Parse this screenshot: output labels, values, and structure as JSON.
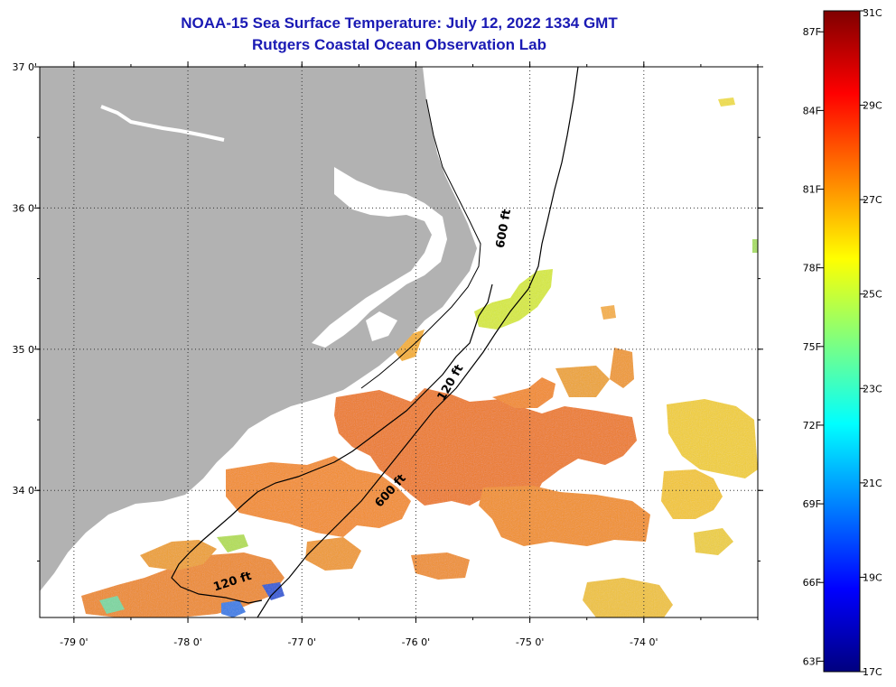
{
  "title": {
    "line1": "NOAA-15 Sea Surface Temperature:  July 12, 2022 1334 GMT",
    "line2": "Rutgers Coastal Ocean Observation Lab"
  },
  "map": {
    "lon_range": [
      -79.3,
      -73.0
    ],
    "lat_range": [
      33.1,
      37.0
    ],
    "lon_ticks": [
      {
        "lon": -79,
        "label": "-79 0'"
      },
      {
        "lon": -78,
        "label": "-78 0'"
      },
      {
        "lon": -77,
        "label": "-77 0'"
      },
      {
        "lon": -76,
        "label": "-76 0'"
      },
      {
        "lon": -75,
        "label": "-75 0'"
      },
      {
        "lon": -74,
        "label": "-74 0'"
      }
    ],
    "lat_ticks": [
      {
        "lat": 37,
        "label": "37 0'"
      },
      {
        "lat": 36,
        "label": "36 0'"
      },
      {
        "lat": 35,
        "label": "35 0'"
      },
      {
        "lat": 34,
        "label": "34 0'"
      }
    ],
    "grid": "dotted",
    "land_color": "#b2b2b2",
    "cloud_color": "#ffffff",
    "depth_labels": [
      {
        "text": "600 ft",
        "lon": -75.2,
        "lat": 35.85,
        "rotate": -80
      },
      {
        "text": "120 ft",
        "lon": -75.67,
        "lat": 34.75,
        "rotate": -60
      },
      {
        "text": "600 ft",
        "lon": -76.2,
        "lat": 33.98,
        "rotate": -48
      },
      {
        "text": "120 ft",
        "lon": -77.6,
        "lat": 33.33,
        "rotate": -18
      }
    ]
  },
  "colorbar": {
    "colors": [
      "#00007f",
      "#0000ff",
      "#007fff",
      "#00ffff",
      "#7fff7f",
      "#ffff00",
      "#ff7f00",
      "#ff0000",
      "#7f0000"
    ],
    "celsius": [
      {
        "v": 31,
        "label": "31C"
      },
      {
        "v": 29,
        "label": "29C"
      },
      {
        "v": 27,
        "label": "27C"
      },
      {
        "v": 25,
        "label": "25C"
      },
      {
        "v": 23,
        "label": "23C"
      },
      {
        "v": 21,
        "label": "21C"
      },
      {
        "v": 19,
        "label": "19C"
      },
      {
        "v": 17,
        "label": "17C"
      }
    ],
    "fahrenheit": [
      {
        "v": 87,
        "label": "87F"
      },
      {
        "v": 84,
        "label": "84F"
      },
      {
        "v": 81,
        "label": "81F"
      },
      {
        "v": 78,
        "label": "78F"
      },
      {
        "v": 75,
        "label": "75F"
      },
      {
        "v": 72,
        "label": "72F"
      },
      {
        "v": 69,
        "label": "69F"
      },
      {
        "v": 66,
        "label": "66F"
      },
      {
        "v": 63,
        "label": "63F"
      }
    ]
  }
}
